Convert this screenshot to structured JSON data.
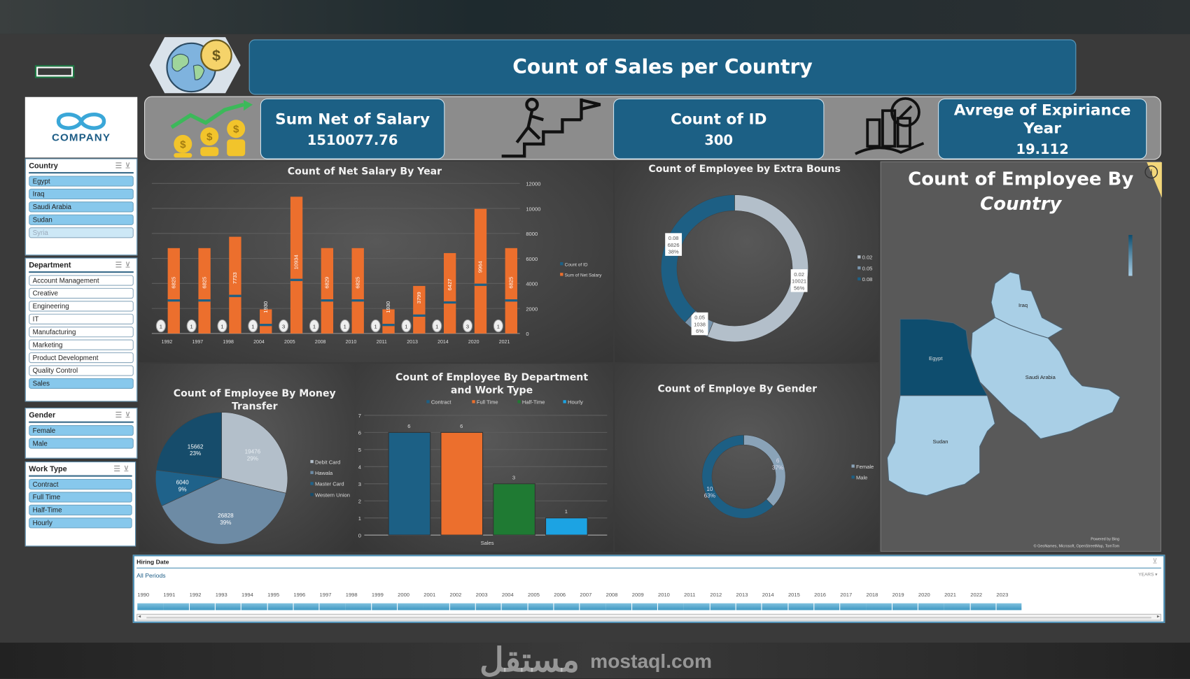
{
  "header": {
    "title": "Count of Sales per Country"
  },
  "kpis": [
    {
      "label": "Sum Net of Salary",
      "value": "1510077.76"
    },
    {
      "label": "Count of ID",
      "value": "300"
    },
    {
      "label": "Avrege of Expiriance Year",
      "value": "19.112"
    }
  ],
  "logo": {
    "text": "COMPANY"
  },
  "slicers": {
    "country": {
      "title": "Country",
      "items": [
        {
          "label": "Egypt",
          "state": "selected"
        },
        {
          "label": "Iraq",
          "state": "selected"
        },
        {
          "label": "Saudi Arabia",
          "state": "selected"
        },
        {
          "label": "Sudan",
          "state": "selected"
        },
        {
          "label": "Syria",
          "state": "nodata"
        }
      ]
    },
    "department": {
      "title": "Department",
      "items": [
        {
          "label": "Account Management",
          "state": "off"
        },
        {
          "label": "Creative",
          "state": "off"
        },
        {
          "label": "Engineering",
          "state": "off"
        },
        {
          "label": "IT",
          "state": "off"
        },
        {
          "label": "Manufacturing",
          "state": "off"
        },
        {
          "label": "Marketing",
          "state": "off"
        },
        {
          "label": "Product Development",
          "state": "off"
        },
        {
          "label": "Quality Control",
          "state": "off"
        },
        {
          "label": "Sales",
          "state": "selected"
        }
      ]
    },
    "gender": {
      "title": "Gender",
      "items": [
        {
          "label": "Female",
          "state": "selected"
        },
        {
          "label": "Male",
          "state": "selected"
        }
      ]
    },
    "work_type": {
      "title": "Work Type",
      "items": [
        {
          "label": "Contract",
          "state": "selected"
        },
        {
          "label": "Full Time",
          "state": "selected"
        },
        {
          "label": "Half-Time",
          "state": "selected"
        },
        {
          "label": "Hourly",
          "state": "selected"
        }
      ]
    }
  },
  "chart_data": [
    {
      "id": "salary",
      "type": "bar",
      "title": "Count of Net Salary By Year",
      "categories": [
        "1992",
        "1997",
        "1998",
        "2004",
        "2005",
        "2008",
        "2010",
        "2011",
        "2013",
        "2014",
        "2020",
        "2021"
      ],
      "series": [
        {
          "name": "Count of ID",
          "values": [
            1,
            1,
            1,
            1,
            3,
            1,
            1,
            1,
            1,
            1,
            3,
            1
          ],
          "color": "#1c6085"
        },
        {
          "name": "Sum of Net Salary",
          "values": [
            6825,
            6825,
            7733,
            1930,
            10934,
            6829,
            6825,
            1930,
            3799,
            6427,
            9964,
            6825
          ],
          "color": "#ec6f2d"
        }
      ],
      "yticks": [
        "0",
        "2000",
        "4000",
        "6000",
        "8000",
        "10000",
        "12000"
      ],
      "ylim": [
        0,
        12000
      ],
      "grid": true,
      "legend": "right"
    },
    {
      "id": "bonus",
      "type": "pie",
      "title": "Count of Employee by Extra Bouns",
      "donut": true,
      "slices": [
        {
          "name": "0.02",
          "value": 10021,
          "pct": "56%",
          "color": "#b3bfca"
        },
        {
          "name": "0.05",
          "value": 1038,
          "pct": "6%",
          "color": "#7894ac"
        },
        {
          "name": "0.08",
          "value": 6826,
          "pct": "38%",
          "color": "#1d5f84"
        }
      ],
      "legend": "right"
    },
    {
      "id": "money",
      "type": "pie",
      "title": "Count of Employee By Money Transfer",
      "slices": [
        {
          "name": "Debit Card",
          "value": 19476,
          "pct": "29%",
          "color": "#b3bfca"
        },
        {
          "name": "Hawala",
          "value": 26828,
          "pct": "39%",
          "color": "#6d8ba5"
        },
        {
          "name": "Master Card",
          "value": 6040,
          "pct": "9%",
          "color": "#1f628a"
        },
        {
          "name": "Western Union",
          "value": 15662,
          "pct": "23%",
          "color": "#164c6b"
        }
      ],
      "legend": "right"
    },
    {
      "id": "dept",
      "type": "bar",
      "title": "Count of Employee By Department and Work Type",
      "categories": [
        "Sales"
      ],
      "series": [
        {
          "name": "Contract",
          "values": [
            6
          ],
          "color": "#1c6085"
        },
        {
          "name": "Full Time",
          "values": [
            6
          ],
          "color": "#ec6f2d"
        },
        {
          "name": "Half-Time",
          "values": [
            3
          ],
          "color": "#1f7a33"
        },
        {
          "name": "Hourly",
          "values": [
            1
          ],
          "color": "#1ca3e3"
        }
      ],
      "yticks": [
        "0",
        "1",
        "2",
        "3",
        "4",
        "5",
        "6",
        "7"
      ],
      "ylim": [
        0,
        7
      ],
      "grid": true,
      "legend": "top"
    },
    {
      "id": "gender",
      "type": "pie",
      "title": "Count of Employe By Gender",
      "donut": true,
      "slices": [
        {
          "name": "Female",
          "value": 6,
          "pct": "37%",
          "color": "#8aa3b8"
        },
        {
          "name": "Male",
          "value": 10,
          "pct": "63%",
          "color": "#1d5f84"
        }
      ],
      "legend": "right"
    }
  ],
  "map": {
    "title_line1": "Count of Employee By",
    "title_line2": "Country",
    "labels": [
      "Iraq",
      "Egypt",
      "Saudi Arabia",
      "Sudan"
    ],
    "powered": "Powered by Bing",
    "credits": "© GeoNames, Microsoft, OpenStreetMap, TomTom",
    "colors": {
      "high": "#0e4d6e",
      "low": "#a9cfe6"
    }
  },
  "timeline": {
    "title": "Hiring Date",
    "period": "All Periods",
    "level": "YEARS",
    "years": [
      "1990",
      "1991",
      "1992",
      "1993",
      "1994",
      "1995",
      "1996",
      "1997",
      "1998",
      "1999",
      "2000",
      "2001",
      "2002",
      "2003",
      "2004",
      "2005",
      "2006",
      "2007",
      "2008",
      "2009",
      "2010",
      "2011",
      "2012",
      "2013",
      "2014",
      "2015",
      "2016",
      "2017",
      "2018",
      "2019",
      "2020",
      "2021",
      "2022",
      "2023"
    ]
  },
  "watermark": {
    "text": "mostaql.com",
    "arabic": "مستقل"
  }
}
